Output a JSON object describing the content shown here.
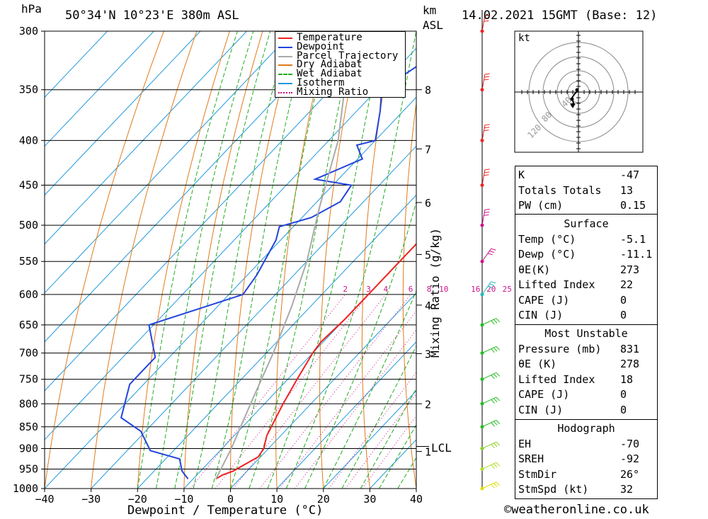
{
  "header": {
    "unit_hpa": "hPa",
    "location": "50°34'N  10°23'E  380m  ASL",
    "unit_km": "km",
    "unit_asl": "ASL",
    "datetime": "14.02.2021  15GMT  (Base: 12)"
  },
  "footer": {
    "copyright": "©weatheronline.co.uk",
    "xlabel": "Dewpoint / Temperature (°C)",
    "mixing_label": "Mixing Ratio (g/kg)",
    "lcl_label": "LCL"
  },
  "legend": {
    "items": [
      {
        "label": "Temperature",
        "color": "#ee2222"
      },
      {
        "label": "Dewpoint",
        "color": "#2244dd"
      },
      {
        "label": "Parcel Trajectory",
        "color": "#aaaaaa"
      },
      {
        "label": "Dry Adiabat",
        "color": "#e07a1a"
      },
      {
        "label": "Wet Adiabat",
        "color": "#22aa22"
      },
      {
        "label": "Isotherm",
        "color": "#2299dd"
      },
      {
        "label": "Mixing Ratio",
        "color": "#cc1188"
      }
    ]
  },
  "hodograph": {
    "unit": "kt",
    "ring_labels": [
      "40",
      "80",
      "120"
    ]
  },
  "indices": {
    "top": [
      {
        "key": "K",
        "value": "-47"
      },
      {
        "key": "Totals Totals",
        "value": "13"
      },
      {
        "key": "PW (cm)",
        "value": "0.15"
      }
    ],
    "surface_title": "Surface",
    "surface": [
      {
        "key": "Temp (°C)",
        "value": "-5.1"
      },
      {
        "key": "Dewp (°C)",
        "value": "-11.1"
      },
      {
        "key": "θE(K)",
        "value": "273"
      },
      {
        "key": "Lifted Index",
        "value": "22"
      },
      {
        "key": "CAPE (J)",
        "value": "0"
      },
      {
        "key": "CIN (J)",
        "value": "0"
      }
    ],
    "unstable_title": "Most Unstable",
    "unstable": [
      {
        "key": "Pressure (mb)",
        "value": "831"
      },
      {
        "key": "θE (K)",
        "value": "278"
      },
      {
        "key": "Lifted Index",
        "value": "18"
      },
      {
        "key": "CAPE (J)",
        "value": "0"
      },
      {
        "key": "CIN (J)",
        "value": "0"
      }
    ],
    "hodo_title": "Hodograph",
    "hodo": [
      {
        "key": "EH",
        "value": "-70"
      },
      {
        "key": "SREH",
        "value": "-92"
      },
      {
        "key": "StmDir",
        "value": "26°"
      },
      {
        "key": "StmSpd (kt)",
        "value": "32"
      }
    ]
  },
  "chart_data": {
    "type": "line",
    "xlabel": "Dewpoint / Temperature (°C)",
    "ylabel": "hPa",
    "xlim": [
      -40,
      40
    ],
    "ylim": [
      1000,
      300
    ],
    "x_ticks": [
      -40,
      -30,
      -20,
      -10,
      0,
      10,
      20,
      30,
      40
    ],
    "pressure_levels": [
      300,
      350,
      400,
      450,
      500,
      550,
      600,
      650,
      700,
      750,
      800,
      850,
      900,
      950,
      1000
    ],
    "km_ticks": [
      {
        "km": "1",
        "p": 907
      },
      {
        "km": "2",
        "p": 800
      },
      {
        "km": "3",
        "p": 701
      },
      {
        "km": "4",
        "p": 617
      },
      {
        "km": "5",
        "p": 540
      },
      {
        "km": "6",
        "p": 471
      },
      {
        "km": "7",
        "p": 409
      },
      {
        "km": "8",
        "p": 350
      }
    ],
    "lcl_p": 895,
    "mixing_ratio_labels": [
      "2",
      "3",
      "4",
      "6",
      "8",
      "10",
      "16",
      "20",
      "25"
    ],
    "series": [
      {
        "name": "Temperature",
        "color": "#ee2222",
        "points": [
          [
            -5.1,
            975
          ],
          [
            -4.5,
            965
          ],
          [
            -3,
            955
          ],
          [
            -0.5,
            920
          ],
          [
            -1,
            900
          ],
          [
            -3,
            870
          ],
          [
            -6,
            800
          ],
          [
            -8,
            750
          ],
          [
            -10,
            700
          ],
          [
            -10.5,
            680
          ],
          [
            -10,
            640
          ],
          [
            -10,
            590
          ],
          [
            -10,
            550
          ],
          [
            -10,
            510
          ],
          [
            -9.5,
            497
          ],
          [
            -11,
            480
          ],
          [
            -13,
            440
          ],
          [
            -13.5,
            410
          ],
          [
            -13.5,
            400
          ],
          [
            -17,
            370
          ],
          [
            -20,
            345
          ],
          [
            -22,
            330
          ],
          [
            -26,
            300
          ]
        ]
      },
      {
        "name": "Dewpoint",
        "color": "#2244dd",
        "points": [
          [
            -11.1,
            975
          ],
          [
            -14,
            955
          ],
          [
            -17,
            925
          ],
          [
            -25,
            905
          ],
          [
            -31,
            860
          ],
          [
            -38,
            830
          ],
          [
            -43,
            760
          ],
          [
            -43,
            708
          ],
          [
            -51,
            650
          ],
          [
            -37,
            600
          ],
          [
            -38,
            570
          ],
          [
            -41,
            520
          ],
          [
            -43,
            502
          ],
          [
            -38,
            490
          ],
          [
            -35,
            470
          ],
          [
            -36,
            450
          ],
          [
            -45,
            443
          ],
          [
            -39,
            420
          ],
          [
            -43,
            405
          ],
          [
            -40,
            400
          ],
          [
            -45,
            370
          ],
          [
            -49,
            350
          ],
          [
            -42,
            300
          ]
        ]
      },
      {
        "name": "Parcel Trajectory",
        "color": "#aaaaaa",
        "points": [
          [
            -5.1,
            975
          ],
          [
            -8,
            900
          ],
          [
            -13,
            800
          ],
          [
            -18.5,
            700
          ],
          [
            -24,
            620
          ],
          [
            -30,
            550
          ],
          [
            -38,
            480
          ],
          [
            -48,
            400
          ],
          [
            -57,
            350
          ],
          [
            -65,
            300
          ]
        ]
      }
    ]
  }
}
